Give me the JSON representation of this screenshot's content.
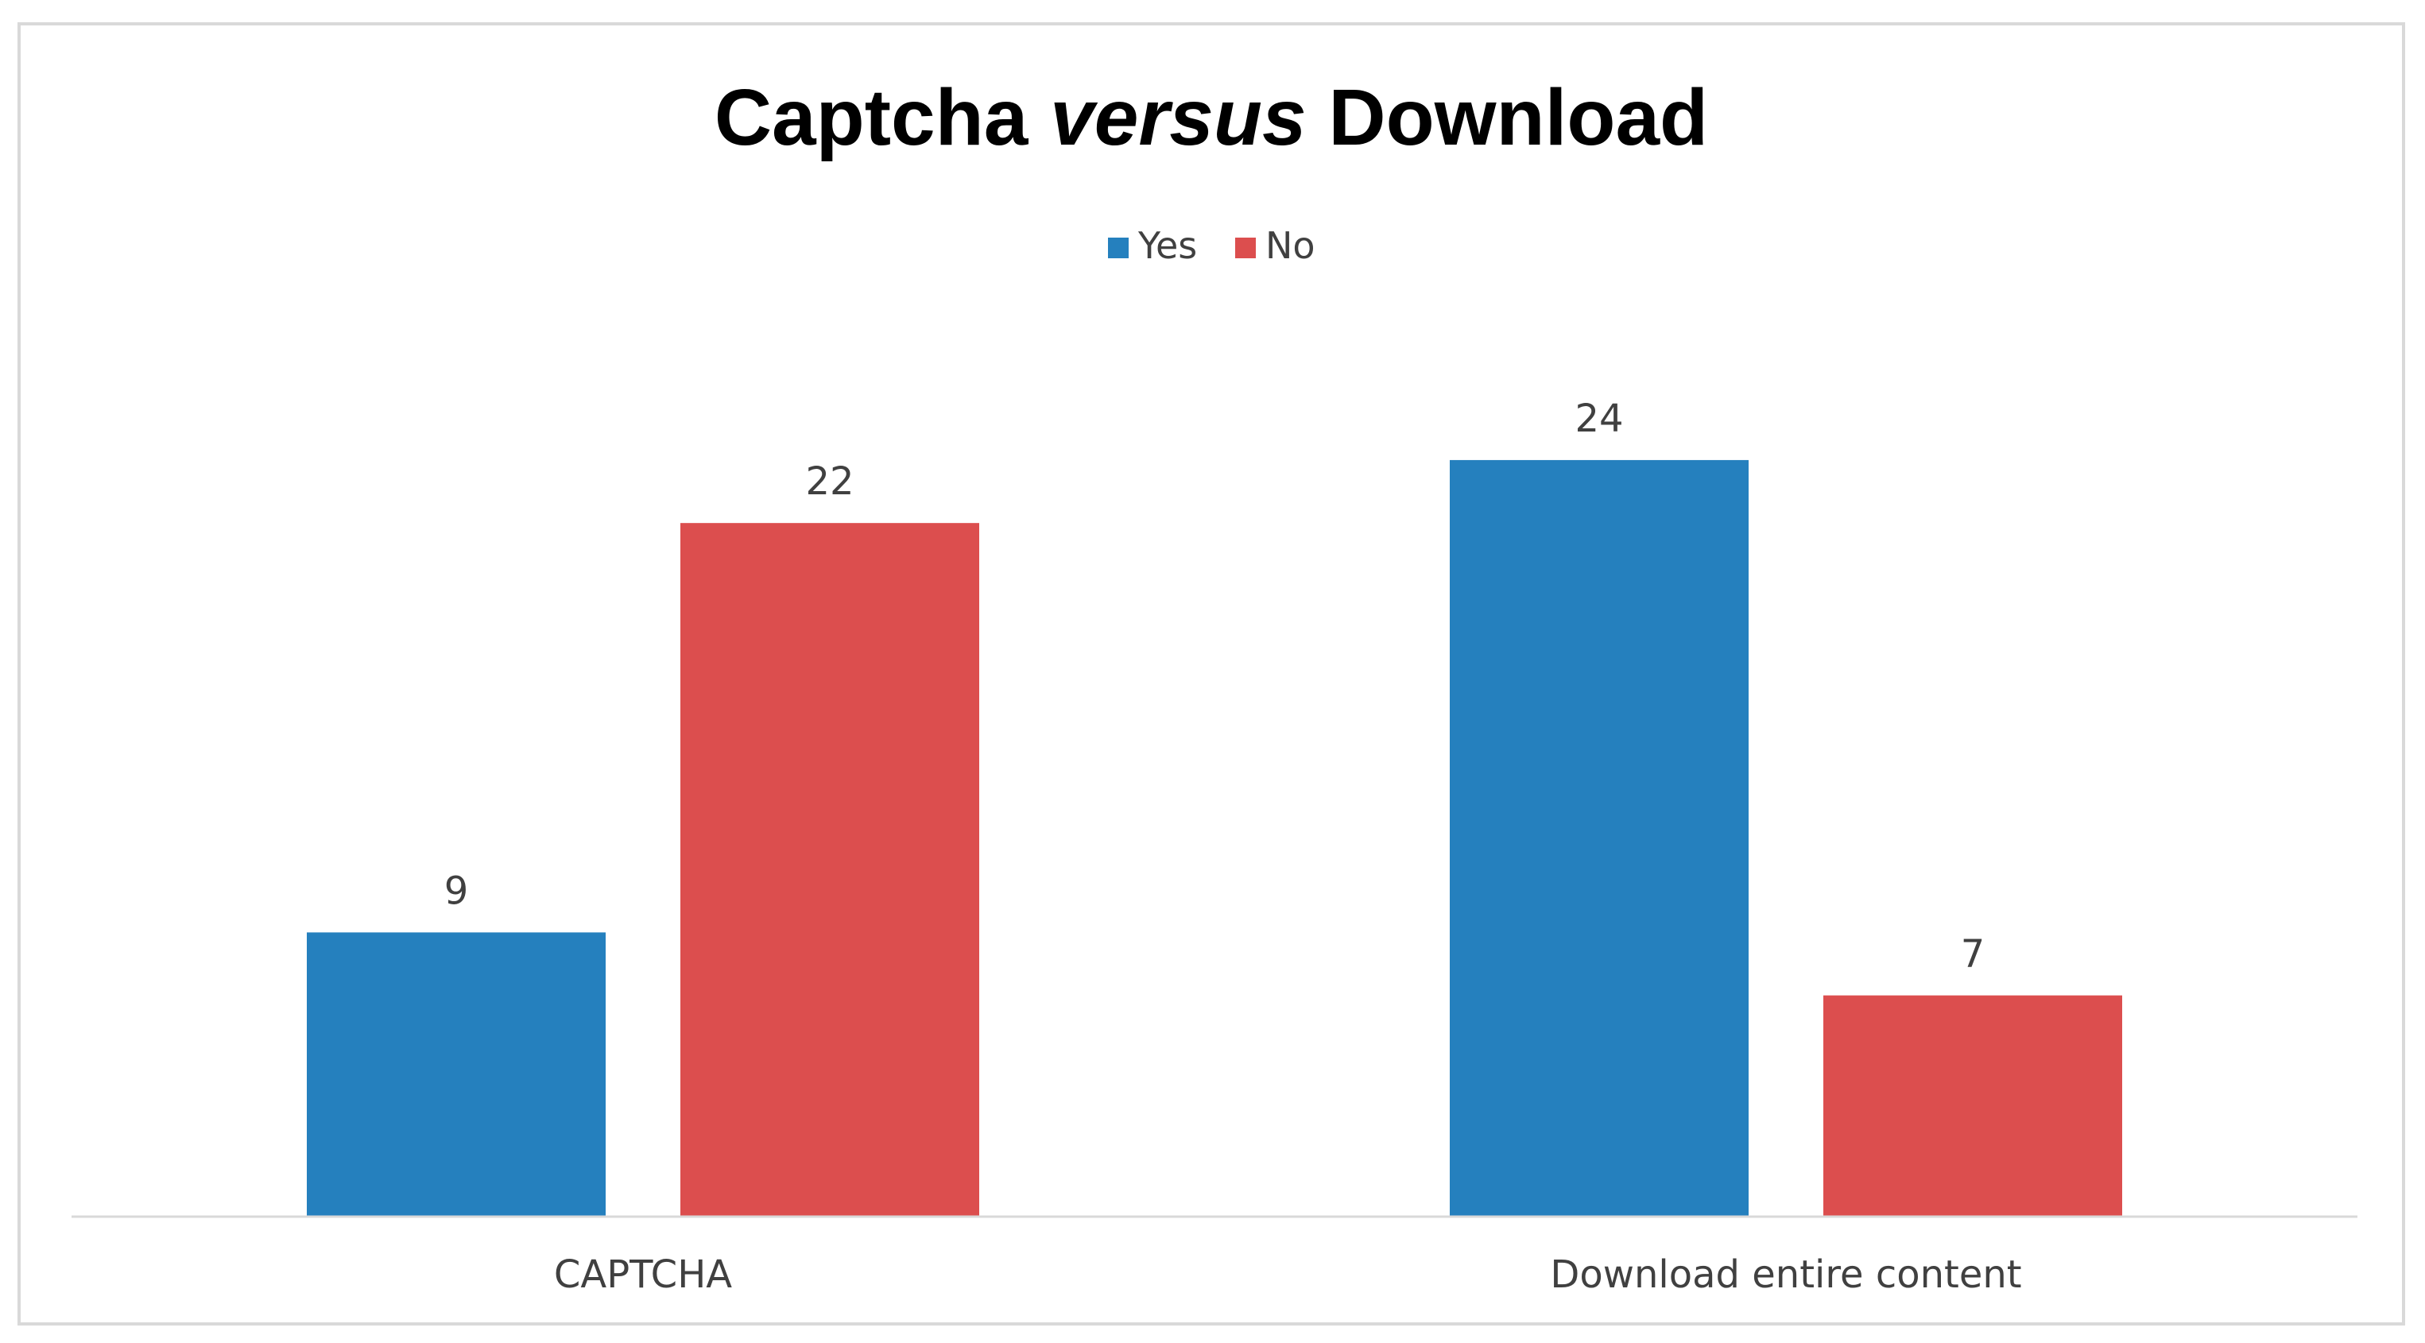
{
  "chart_data": {
    "type": "bar",
    "title_parts": [
      {
        "text": "Captcha ",
        "italic": false
      },
      {
        "text": "versus",
        "italic": true
      },
      {
        "text": " Download",
        "italic": false
      }
    ],
    "categories": [
      "CAPTCHA",
      "Download entire content"
    ],
    "series": [
      {
        "name": "Yes",
        "color": "#2580BE",
        "values": [
          9,
          24
        ]
      },
      {
        "name": "No",
        "color": "#DC4E4E",
        "values": [
          22,
          7
        ]
      }
    ],
    "data_labels": true,
    "legend_position": "top-center",
    "ylim": [
      0,
      29.6
    ],
    "grid": false,
    "axis_color": "#d9d9d9"
  }
}
